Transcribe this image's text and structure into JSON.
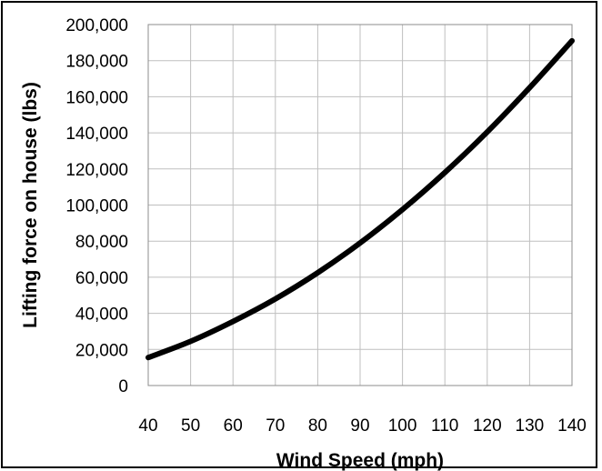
{
  "chart_data": {
    "type": "line",
    "title": "",
    "xlabel": "Wind Speed (mph)",
    "ylabel": "Lifting force on house (lbs)",
    "xlim": [
      40,
      140
    ],
    "ylim": [
      0,
      200000
    ],
    "x_ticks": [
      "40",
      "50",
      "60",
      "70",
      "80",
      "90",
      "100",
      "110",
      "120",
      "130",
      "140"
    ],
    "y_ticks": [
      "0",
      "20,000",
      "40,000",
      "60,000",
      "80,000",
      "100,000",
      "120,000",
      "140,000",
      "160,000",
      "180,000",
      "200,000"
    ],
    "grid": true,
    "legend": "none",
    "series": [
      {
        "color": "#000000",
        "x": [
          40,
          50,
          60,
          70,
          80,
          90,
          100,
          110,
          120,
          130,
          140
        ],
        "y": [
          15500,
          24500,
          35500,
          48000,
          62500,
          79000,
          97500,
          118000,
          140500,
          165000,
          191000
        ]
      }
    ]
  }
}
